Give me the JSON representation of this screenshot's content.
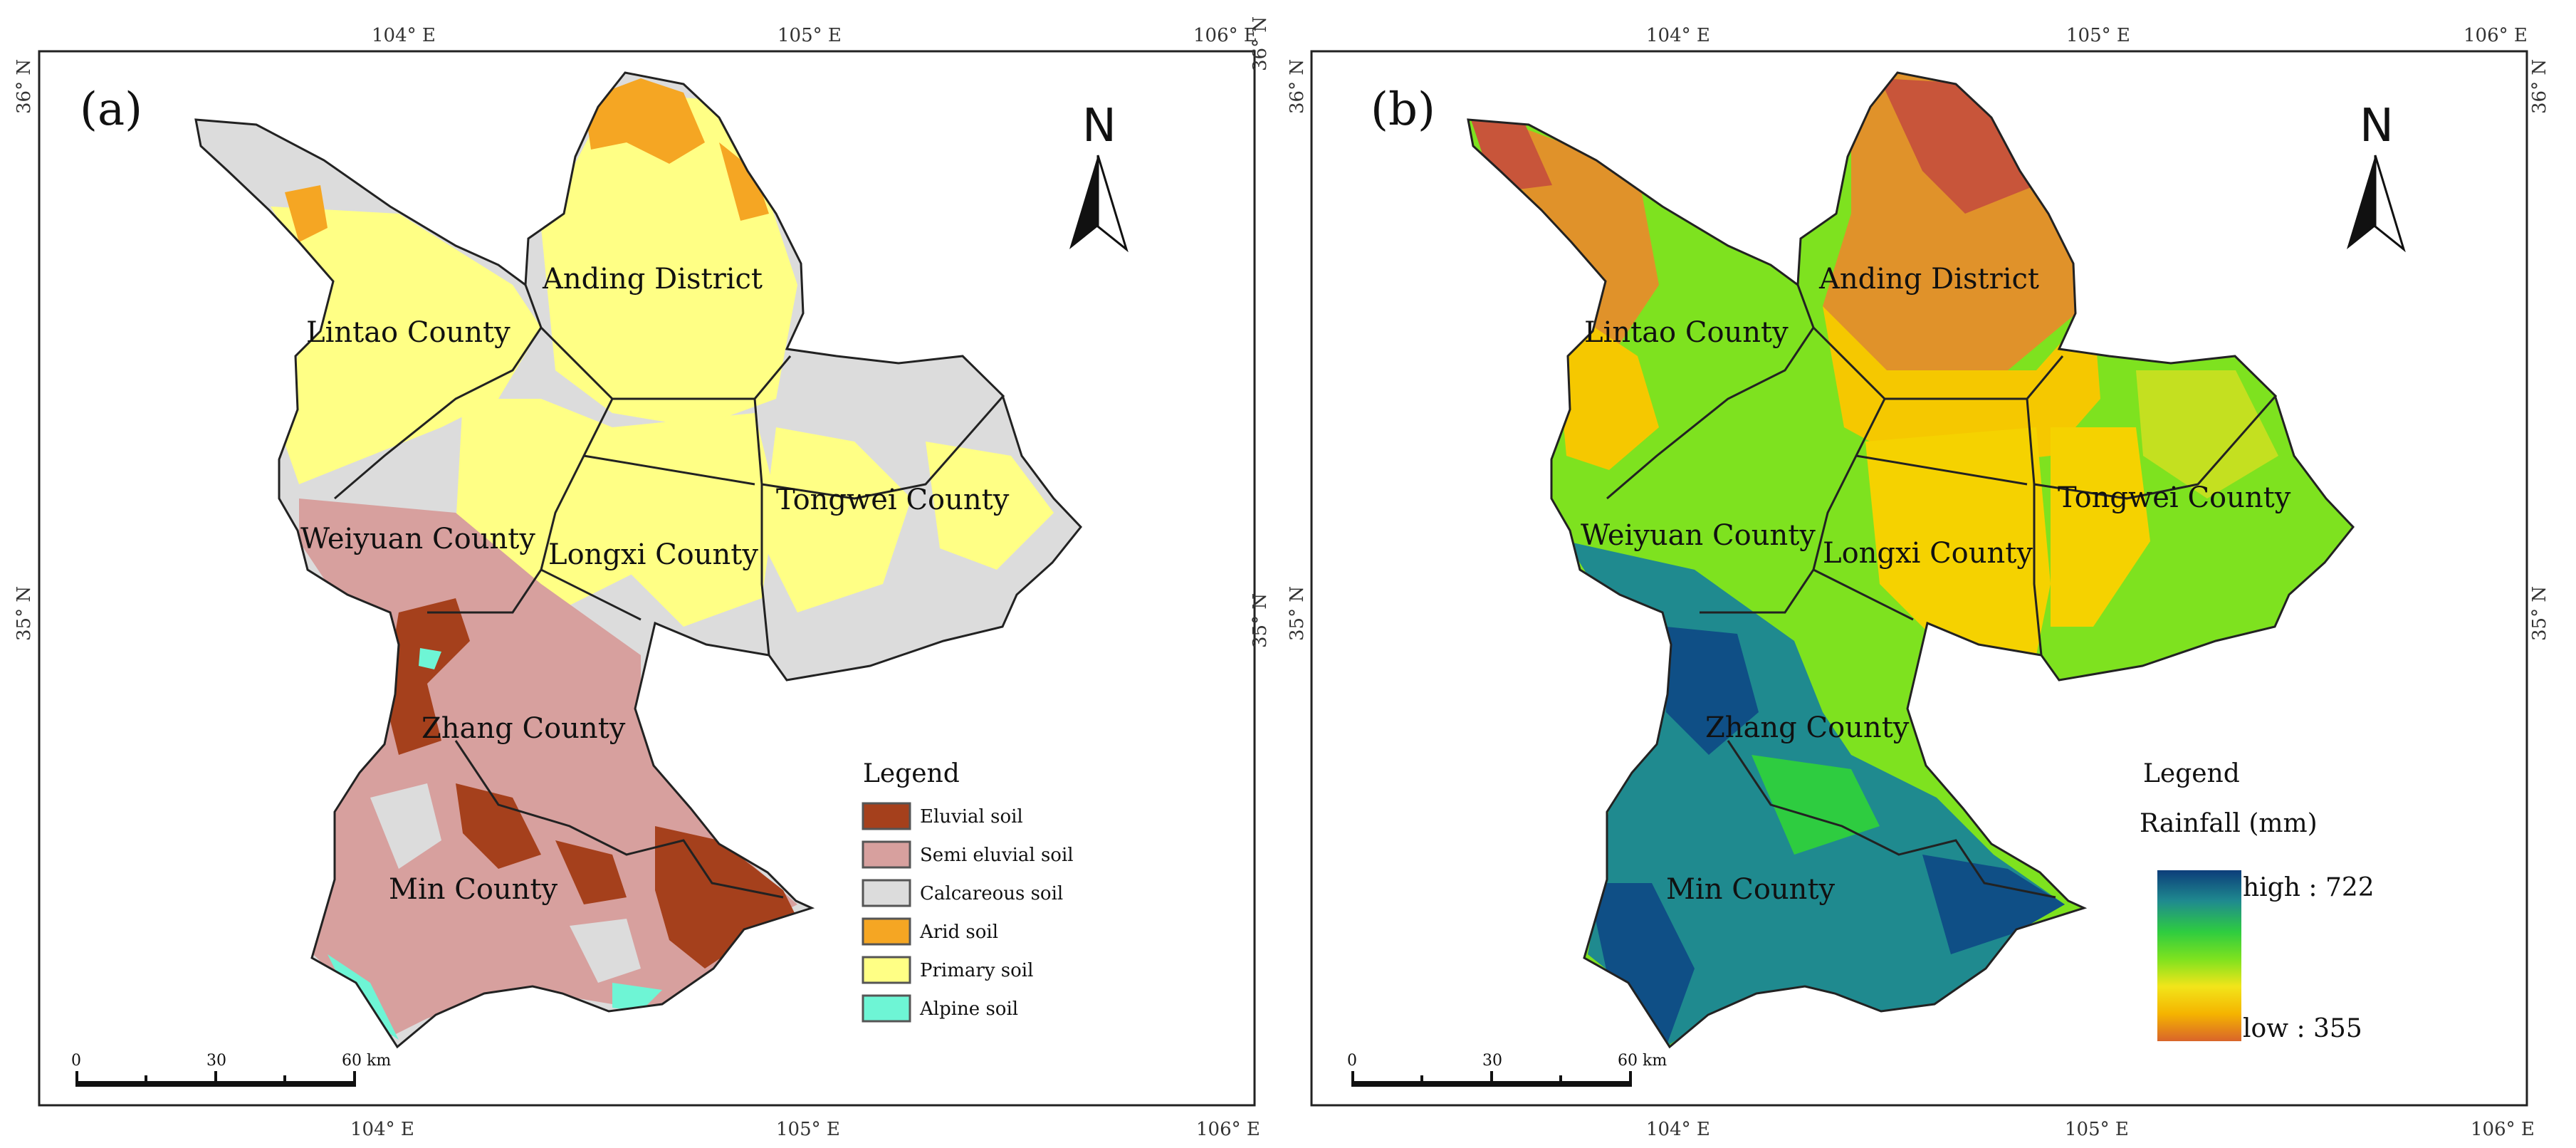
{
  "panels": [
    {
      "label": "(a)",
      "counties": [
        "Anding District",
        "Lintao County",
        "Tongwei County",
        "Weiyuan County",
        "Longxi County",
        "Zhang County",
        "Min County"
      ],
      "coords": {
        "top": [
          "104° E",
          "105° E",
          "106° E"
        ],
        "bottom": [
          "104° E",
          "105° E",
          "106° E"
        ],
        "left": [
          "36° N",
          "35° N"
        ],
        "right": [
          "36° N",
          "35° N"
        ]
      },
      "legend": {
        "title": "Legend",
        "items": [
          {
            "label": "Eluvial soil",
            "color": "#a5401c"
          },
          {
            "label": "Semi eluvial soil",
            "color": "#d7a09e"
          },
          {
            "label": "Calcareous soil",
            "color": "#dcdcdc"
          },
          {
            "label": "Arid soil",
            "color": "#f5a623"
          },
          {
            "label": "Primary soil",
            "color": "#ffff85"
          },
          {
            "label": "Alpine soil",
            "color": "#6ef5d5"
          }
        ]
      },
      "scale": {
        "ticks": [
          "0",
          "30",
          "60 km"
        ]
      },
      "north": "N"
    },
    {
      "label": "(b)",
      "counties": [
        "Anding District",
        "Lintao County",
        "Tongwei County",
        "Weiyuan County",
        "Longxi County",
        "Zhang County",
        "Min County"
      ],
      "coords": {
        "top": [
          "104° E",
          "105° E",
          "106° E"
        ],
        "bottom": [
          "104° E",
          "105° E",
          "106° E"
        ],
        "left": [
          "36° N",
          "35° N"
        ],
        "right": [
          "36° N",
          "35° N"
        ]
      },
      "legend": {
        "title": "Legend",
        "subtitle": "Rainfall (mm)",
        "high": "high : 722",
        "low": "low : 355",
        "ramp": [
          "#0c3d7a",
          "#1f8a8f",
          "#2ecc40",
          "#7ee21f",
          "#f2e51a",
          "#f5b400",
          "#d9642a"
        ]
      },
      "scale": {
        "ticks": [
          "0",
          "30",
          "60 km"
        ]
      },
      "north": "N"
    }
  ]
}
